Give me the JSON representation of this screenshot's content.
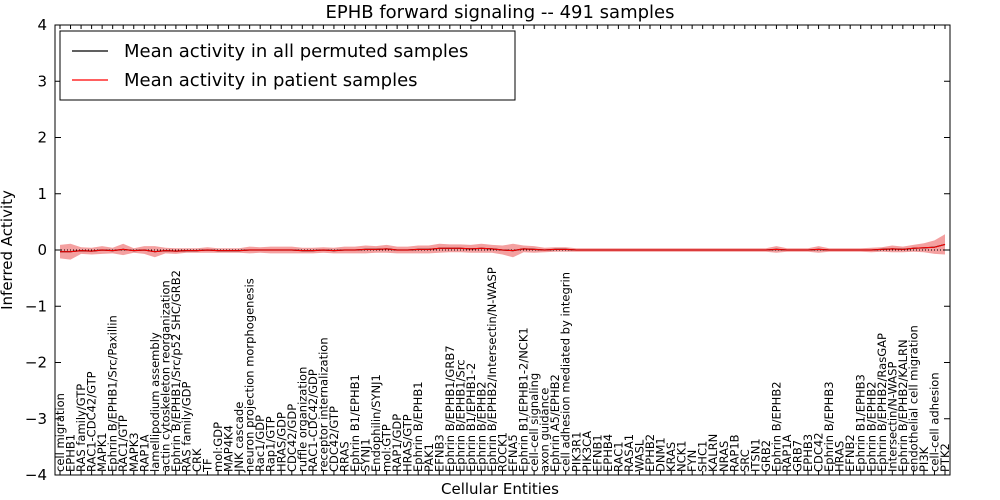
{
  "chart_data": {
    "type": "line",
    "title": "EPHB forward signaling -- 491 samples",
    "xlabel": "Cellular Entities",
    "ylabel": "Inferred Activity",
    "ylim": [
      -4,
      4
    ],
    "yticks": [
      -4,
      -3,
      -2,
      -1,
      0,
      1,
      2,
      3,
      4
    ],
    "grid": false,
    "legend_position": "top-left",
    "categories": [
      "cell migration",
      "EPHB1",
      "RAS family/GTP",
      "RAC1-CDC42/GTP",
      "MAPK1",
      "Ephrin B/EPHB1/Src/Paxillin",
      "RAC1/GTP",
      "MAPK3",
      "RAP1A",
      "lamellipodium assembly",
      "actin cytoskeleton reorganization",
      "Ephrin B/EPHB1/Src/p52 SHC/GRB2",
      "RAS family/GDP",
      "CRK",
      "TF",
      "mol:GDP",
      "MAP4K4",
      "JNK cascade",
      "neuron projection morphogenesis",
      "Rac1/GDP",
      "Rap1/GTP",
      "HRAS/GDP",
      "CDC42/GDP",
      "ruffle organization",
      "RAC1-CDC42/GDP",
      "receptor internalization",
      "CDC42/GTP",
      "RRAS",
      "Ephrin B1/EPHB1",
      "SYNJ1",
      "Endophilin/SYNJ1",
      "mol:GTP",
      "RAP1/GDP",
      "HRAS/GTP",
      "Ephrin B/EPHB1",
      "PAK1",
      "EFNB3",
      "Ephrin B/EPHB1/GRB7",
      "Ephrin B/EPHB1/Src",
      "Ephrin B1/EPHB1-2",
      "Ephrin B/EPHB2",
      "Ephrin B/EPHB2/Intersectin/N-WASP",
      "ROCK1",
      "EFNA5",
      "Ephrin B1/EPHB1-2/NCK1",
      "cell-cell signaling",
      "axon guidance",
      "Ephrin A5/EPHB2",
      "cell adhesion mediated by integrin",
      "PIK3R1",
      "PIK3CA",
      "EFNB1",
      "EPHB4",
      "RAC1",
      "RASA1",
      "WASL",
      "EPHB2",
      "DNM1",
      "KRAS",
      "NCK1",
      "FYN",
      "SHC1",
      "KALRN",
      "NRAS",
      "RAP1B",
      "SRC",
      "ITSN1",
      "GRB2",
      "Ephrin B/EPHB2",
      "RAP1A",
      "GRB7",
      "EPHB3",
      "CDC42",
      "Ephrin B/EPHB3",
      "HRAS",
      "EFNB2",
      "Ephrin B1/EPHB3",
      "Ephrin B/EPHB2",
      "Ephrin B/EPHB2/RasGAP",
      "Intersectin/N-WASP",
      "Ephrin B/EPHB2/KALRN",
      "endothelial cell migration",
      "PI3K",
      "cell-cell adhesion",
      "PTK2"
    ],
    "series": [
      {
        "name": "Mean activity in all permuted samples",
        "color": "#000000",
        "values": [
          -0.03,
          -0.03,
          -0.01,
          -0.02,
          0.0,
          -0.01,
          0.01,
          -0.01,
          0.0,
          -0.03,
          -0.01,
          -0.02,
          -0.01,
          -0.01,
          0.0,
          -0.01,
          -0.01,
          -0.01,
          0.0,
          0.0,
          0.0,
          0.0,
          0.0,
          -0.01,
          -0.01,
          0.0,
          -0.01,
          0.0,
          0.0,
          0.01,
          0.01,
          0.02,
          0.0,
          0.0,
          0.01,
          0.01,
          0.03,
          0.03,
          0.03,
          0.02,
          0.03,
          0.02,
          0.0,
          -0.01,
          0.02,
          0.01,
          0.0,
          0.01,
          0.01,
          0.0,
          0.0,
          0.0,
          0.0,
          0.0,
          0.0,
          0.0,
          0.0,
          0.0,
          0.0,
          0.0,
          0.0,
          0.0,
          0.0,
          0.0,
          0.0,
          0.0,
          0.0,
          0.0,
          0.01,
          0.0,
          0.0,
          0.0,
          0.01,
          0.0,
          0.0,
          0.0,
          0.0,
          0.0,
          0.01,
          0.02,
          0.01,
          0.03,
          0.04,
          0.05,
          0.1
        ]
      },
      {
        "name": "Mean activity in patient samples",
        "color": "#ff0000",
        "values": [
          -0.03,
          -0.03,
          -0.01,
          -0.02,
          0.0,
          -0.01,
          0.01,
          -0.01,
          0.0,
          -0.03,
          -0.01,
          -0.02,
          -0.01,
          -0.01,
          0.0,
          -0.01,
          -0.01,
          -0.01,
          0.0,
          0.0,
          0.0,
          0.0,
          0.0,
          -0.01,
          -0.01,
          0.0,
          -0.01,
          0.0,
          0.0,
          0.01,
          0.01,
          0.02,
          0.0,
          0.0,
          0.01,
          0.01,
          0.03,
          0.03,
          0.03,
          0.02,
          0.03,
          0.02,
          0.0,
          -0.01,
          0.02,
          0.01,
          0.0,
          0.01,
          0.01,
          0.0,
          0.0,
          0.0,
          0.0,
          0.0,
          0.0,
          0.0,
          0.0,
          0.0,
          0.0,
          0.0,
          0.0,
          0.0,
          0.0,
          0.0,
          0.0,
          0.0,
          0.0,
          0.0,
          0.01,
          0.0,
          0.0,
          0.0,
          0.01,
          0.0,
          0.0,
          0.0,
          0.0,
          0.0,
          0.01,
          0.02,
          0.01,
          0.03,
          0.04,
          0.05,
          0.1
        ],
        "band_spread": [
          0.12,
          0.14,
          0.06,
          0.06,
          0.07,
          0.05,
          0.1,
          0.04,
          0.07,
          0.1,
          0.05,
          0.05,
          0.04,
          0.04,
          0.05,
          0.04,
          0.04,
          0.04,
          0.06,
          0.05,
          0.06,
          0.06,
          0.06,
          0.05,
          0.05,
          0.05,
          0.05,
          0.06,
          0.06,
          0.07,
          0.06,
          0.07,
          0.06,
          0.06,
          0.07,
          0.07,
          0.08,
          0.07,
          0.07,
          0.07,
          0.08,
          0.07,
          0.08,
          0.12,
          0.06,
          0.06,
          0.04,
          0.04,
          0.04,
          0.03,
          0.03,
          0.03,
          0.03,
          0.03,
          0.03,
          0.03,
          0.03,
          0.03,
          0.03,
          0.03,
          0.03,
          0.03,
          0.03,
          0.03,
          0.03,
          0.03,
          0.03,
          0.03,
          0.06,
          0.03,
          0.03,
          0.03,
          0.06,
          0.03,
          0.03,
          0.03,
          0.03,
          0.04,
          0.04,
          0.06,
          0.05,
          0.06,
          0.08,
          0.12,
          0.18
        ]
      }
    ]
  }
}
